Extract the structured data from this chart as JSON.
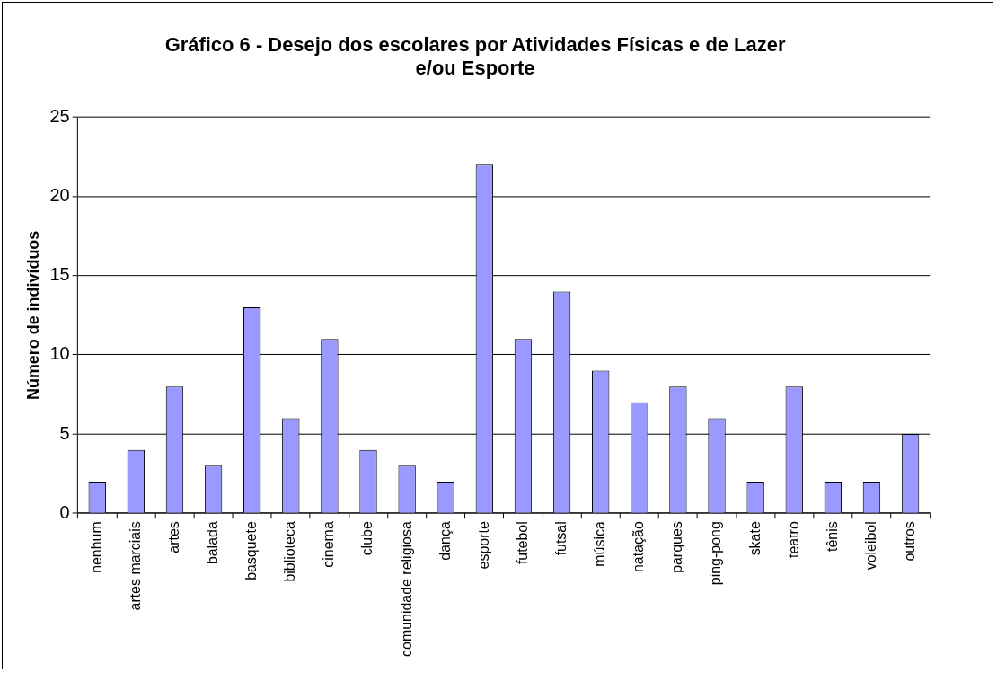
{
  "chart_data": {
    "type": "bar",
    "title": "Gráfico 6 - Desejo dos escolares por Atividades Físicas e de Lazer e/ou Esporte",
    "ylabel": "Número de indivíduos",
    "categories": [
      "nenhum",
      "artes marciais",
      "artes",
      "balada",
      "basquete",
      "biblioteca",
      "cinema",
      "clube",
      "comunidade religiosa",
      "dança",
      "esporte",
      "futebol",
      "futsal",
      "música",
      "natação",
      "parques",
      "ping-pong",
      "skate",
      "teatro",
      "tênis",
      "voleibol",
      "outros"
    ],
    "values": [
      2,
      4,
      8,
      3,
      13,
      6,
      11,
      4,
      3,
      2,
      22,
      11,
      14,
      9,
      7,
      8,
      6,
      2,
      8,
      2,
      2,
      5
    ],
    "color": "#9999ff",
    "ylim": [
      0,
      25
    ],
    "yticks": [
      0,
      5,
      10,
      15,
      20,
      25
    ],
    "grid": "y",
    "legend": false
  }
}
